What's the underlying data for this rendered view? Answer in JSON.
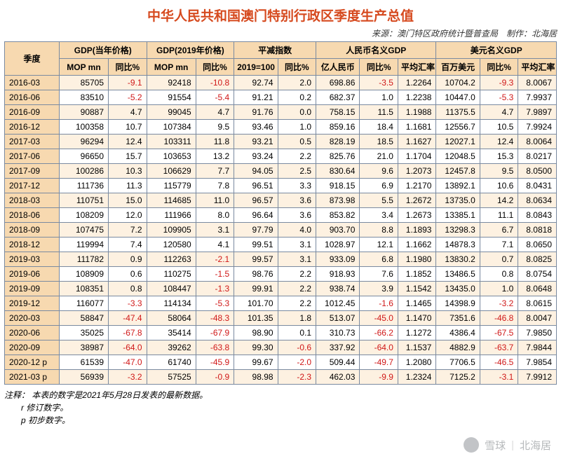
{
  "title": "中华人民共和国澳门特别行政区季度生产总值",
  "title_color": "#d64a1f",
  "title_fontsize": 19,
  "source_line": "来源：澳门特区政府统计暨普查局　制作：北海居",
  "source_fontsize": 12,
  "source_color": "#333333",
  "header_bg": "#f7d9b0",
  "header_font_color": "#000000",
  "header_fontsize": 12,
  "body_fontsize": 12,
  "stripe_color": "#fdf1e1",
  "row_bg": "#ffffff",
  "border_color": "#7a8aa0",
  "neg_color": "#d01818",
  "col_widths_pct": [
    10,
    9,
    7,
    9,
    7,
    8,
    7,
    8,
    7,
    7,
    8,
    7,
    7
  ],
  "groups": [
    {
      "label": "季度",
      "sub": null,
      "span": 1
    },
    {
      "label": "GDP(当年价格)",
      "sub": [
        "MOP mn",
        "同比%"
      ],
      "span": 2
    },
    {
      "label": "GDP(2019年价格)",
      "sub": [
        "MOP mn",
        "同比%"
      ],
      "span": 2
    },
    {
      "label": "平减指数",
      "sub": [
        "2019=100",
        "同比%"
      ],
      "span": 2
    },
    {
      "label": "人民币名义GDP",
      "sub": [
        "亿人民币",
        "同比%",
        "平均汇率"
      ],
      "span": 3
    },
    {
      "label": "美元名义GDP",
      "sub": [
        "百万美元",
        "同比%",
        "平均汇率"
      ],
      "span": 3
    }
  ],
  "rows": [
    {
      "p": "2016-03",
      "v": [
        "85705",
        "-9.1",
        "92418",
        "-10.8",
        "92.74",
        "2.0",
        "698.86",
        "-3.5",
        "1.2264",
        "10704.2",
        "-9.3",
        "8.0067"
      ]
    },
    {
      "p": "2016-06",
      "v": [
        "83510",
        "-5.2",
        "91554",
        "-5.4",
        "91.21",
        "0.2",
        "682.37",
        "1.0",
        "1.2238",
        "10447.0",
        "-5.3",
        "7.9937"
      ]
    },
    {
      "p": "2016-09",
      "v": [
        "90887",
        "4.7",
        "99045",
        "4.7",
        "91.76",
        "0.0",
        "758.15",
        "11.5",
        "1.1988",
        "11375.5",
        "4.7",
        "7.9897"
      ]
    },
    {
      "p": "2016-12",
      "v": [
        "100358",
        "10.7",
        "107384",
        "9.5",
        "93.46",
        "1.0",
        "859.16",
        "18.4",
        "1.1681",
        "12556.7",
        "10.5",
        "7.9924"
      ]
    },
    {
      "p": "2017-03",
      "v": [
        "96294",
        "12.4",
        "103311",
        "11.8",
        "93.21",
        "0.5",
        "828.19",
        "18.5",
        "1.1627",
        "12027.1",
        "12.4",
        "8.0064"
      ]
    },
    {
      "p": "2017-06",
      "v": [
        "96650",
        "15.7",
        "103653",
        "13.2",
        "93.24",
        "2.2",
        "825.76",
        "21.0",
        "1.1704",
        "12048.5",
        "15.3",
        "8.0217"
      ]
    },
    {
      "p": "2017-09",
      "v": [
        "100286",
        "10.3",
        "106629",
        "7.7",
        "94.05",
        "2.5",
        "830.64",
        "9.6",
        "1.2073",
        "12457.8",
        "9.5",
        "8.0500"
      ]
    },
    {
      "p": "2017-12",
      "v": [
        "111736",
        "11.3",
        "115779",
        "7.8",
        "96.51",
        "3.3",
        "918.15",
        "6.9",
        "1.2170",
        "13892.1",
        "10.6",
        "8.0431"
      ]
    },
    {
      "p": "2018-03",
      "v": [
        "110751",
        "15.0",
        "114685",
        "11.0",
        "96.57",
        "3.6",
        "873.98",
        "5.5",
        "1.2672",
        "13735.0",
        "14.2",
        "8.0634"
      ]
    },
    {
      "p": "2018-06",
      "v": [
        "108209",
        "12.0",
        "111966",
        "8.0",
        "96.64",
        "3.6",
        "853.82",
        "3.4",
        "1.2673",
        "13385.1",
        "11.1",
        "8.0843"
      ]
    },
    {
      "p": "2018-09",
      "v": [
        "107475",
        "7.2",
        "109905",
        "3.1",
        "97.79",
        "4.0",
        "903.70",
        "8.8",
        "1.1893",
        "13298.3",
        "6.7",
        "8.0818"
      ]
    },
    {
      "p": "2018-12",
      "v": [
        "119994",
        "7.4",
        "120580",
        "4.1",
        "99.51",
        "3.1",
        "1028.97",
        "12.1",
        "1.1662",
        "14878.3",
        "7.1",
        "8.0650"
      ]
    },
    {
      "p": "2019-03",
      "v": [
        "111782",
        "0.9",
        "112263",
        "-2.1",
        "99.57",
        "3.1",
        "933.09",
        "6.8",
        "1.1980",
        "13830.2",
        "0.7",
        "8.0825"
      ]
    },
    {
      "p": "2019-06",
      "v": [
        "108909",
        "0.6",
        "110275",
        "-1.5",
        "98.76",
        "2.2",
        "918.93",
        "7.6",
        "1.1852",
        "13486.5",
        "0.8",
        "8.0754"
      ]
    },
    {
      "p": "2019-09",
      "v": [
        "108351",
        "0.8",
        "108447",
        "-1.3",
        "99.91",
        "2.2",
        "938.74",
        "3.9",
        "1.1542",
        "13435.0",
        "1.0",
        "8.0648"
      ]
    },
    {
      "p": "2019-12",
      "v": [
        "116077",
        "-3.3",
        "114134",
        "-5.3",
        "101.70",
        "2.2",
        "1012.45",
        "-1.6",
        "1.1465",
        "14398.9",
        "-3.2",
        "8.0615"
      ]
    },
    {
      "p": "2020-03",
      "v": [
        "58847",
        "-47.4",
        "58064",
        "-48.3",
        "101.35",
        "1.8",
        "513.07",
        "-45.0",
        "1.1470",
        "7351.6",
        "-46.8",
        "8.0047"
      ]
    },
    {
      "p": "2020-06",
      "v": [
        "35025",
        "-67.8",
        "35414",
        "-67.9",
        "98.90",
        "0.1",
        "310.73",
        "-66.2",
        "1.1272",
        "4386.4",
        "-67.5",
        "7.9850"
      ]
    },
    {
      "p": "2020-09",
      "v": [
        "38987",
        "-64.0",
        "39262",
        "-63.8",
        "99.30",
        "-0.6",
        "337.92",
        "-64.0",
        "1.1537",
        "4882.9",
        "-63.7",
        "7.9844"
      ]
    },
    {
      "p": "2020-12 p",
      "v": [
        "61539",
        "-47.0",
        "61740",
        "-45.9",
        "99.67",
        "-2.0",
        "509.44",
        "-49.7",
        "1.2080",
        "7706.5",
        "-46.5",
        "7.9854"
      ]
    },
    {
      "p": "2021-03 p",
      "v": [
        "56939",
        "-3.2",
        "57525",
        "-0.9",
        "98.98",
        "-2.3",
        "462.03",
        "-9.9",
        "1.2324",
        "7125.2",
        "-3.1",
        "7.9912"
      ]
    }
  ],
  "notes": {
    "prefix": "注释：",
    "lines": [
      "本表的数字是2021年5月28日发表的最新数据。",
      "r 修订数字。",
      "p 初步数字。"
    ],
    "fontsize": 12,
    "color": "#000000"
  },
  "watermark": {
    "logo_label": "雪球",
    "author": "北海居"
  }
}
